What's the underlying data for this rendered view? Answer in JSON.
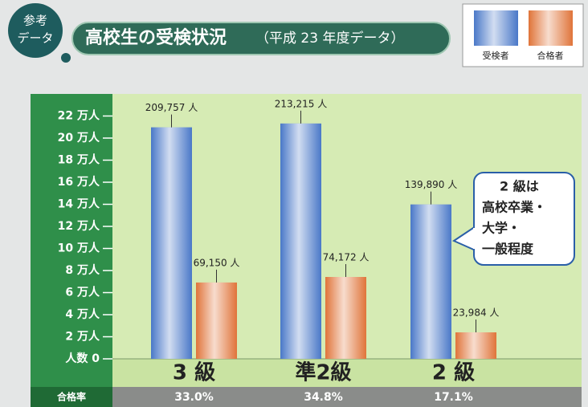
{
  "chart_data": {
    "type": "bar",
    "badge": [
      "参考",
      "データ"
    ],
    "title": "高校生の受検状況",
    "subtitle": "（平成 23 年度データ）",
    "categories": [
      "3 級",
      "準2級",
      "2 級"
    ],
    "series": [
      {
        "name": "受検者",
        "color": "#4a78c8",
        "values": [
          209757,
          213215,
          139890
        ],
        "value_labels": [
          "209,757 人",
          "213,215 人",
          "139,890 人"
        ]
      },
      {
        "name": "合格者",
        "color": "#e0743a",
        "values": [
          69150,
          74172,
          23984
        ],
        "value_labels": [
          "69,150 人",
          "74,172 人",
          "23,984 人"
        ]
      }
    ],
    "ylim": [
      0,
      240000
    ],
    "yticks": [
      {
        "value": 0,
        "label": "人数 0"
      },
      {
        "value": 20000,
        "label": "2 万人"
      },
      {
        "value": 40000,
        "label": "4 万人"
      },
      {
        "value": 60000,
        "label": "6 万人"
      },
      {
        "value": 80000,
        "label": "8 万人"
      },
      {
        "value": 100000,
        "label": "10 万人"
      },
      {
        "value": 120000,
        "label": "12 万人"
      },
      {
        "value": 140000,
        "label": "14 万人"
      },
      {
        "value": 160000,
        "label": "16 万人"
      },
      {
        "value": 180000,
        "label": "18 万人"
      },
      {
        "value": 200000,
        "label": "20 万人"
      },
      {
        "value": 220000,
        "label": "22 万人"
      }
    ],
    "legend_position": "top-right",
    "annotation": [
      "2 級は",
      "高校卒業・",
      "大学・",
      "一般程度"
    ],
    "pass_rate": {
      "label": "合格率",
      "values": [
        "33.0%",
        "34.8%",
        "17.1%"
      ]
    }
  }
}
